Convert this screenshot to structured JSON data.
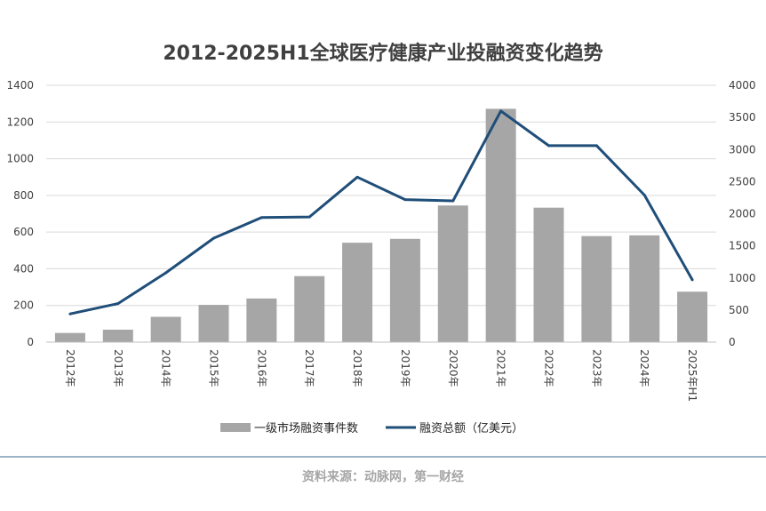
{
  "chart_data": {
    "type": "bar",
    "title": "2012-2025H1全球医疗健康产业投融资变化趋势",
    "categories": [
      "2012年",
      "2013年",
      "2014年",
      "2015年",
      "2016年",
      "2017年",
      "2018年",
      "2019年",
      "2020年",
      "2021年",
      "2022年",
      "2023年",
      "2024年",
      "2025年H1"
    ],
    "series": [
      {
        "name": "一级市场融资事件数",
        "type": "bar",
        "axis": "left",
        "color": "#a6a6a6",
        "values": [
          50,
          68,
          138,
          203,
          238,
          360,
          542,
          563,
          745,
          1272,
          733,
          578,
          582,
          275
        ]
      },
      {
        "name": "融资总额（亿美元）",
        "type": "line",
        "axis": "right",
        "color": "#1f4e79",
        "values": [
          440,
          600,
          1080,
          1620,
          1940,
          1950,
          2570,
          2220,
          2200,
          3600,
          3060,
          3060,
          2290,
          970
        ]
      }
    ],
    "ylim_left": [
      0,
      1400
    ],
    "yticks_left": [
      "0",
      "200",
      "400",
      "600",
      "800",
      "1000",
      "1200",
      "1400"
    ],
    "ylim_right": [
      0,
      4000
    ],
    "yticks_right": [
      "0",
      "500",
      "1000",
      "1500",
      "2000",
      "2500",
      "3000",
      "3500",
      "4000"
    ],
    "grid": true,
    "legend_position": "bottom"
  },
  "source_text": "资料来源：动脉网，第一财经"
}
